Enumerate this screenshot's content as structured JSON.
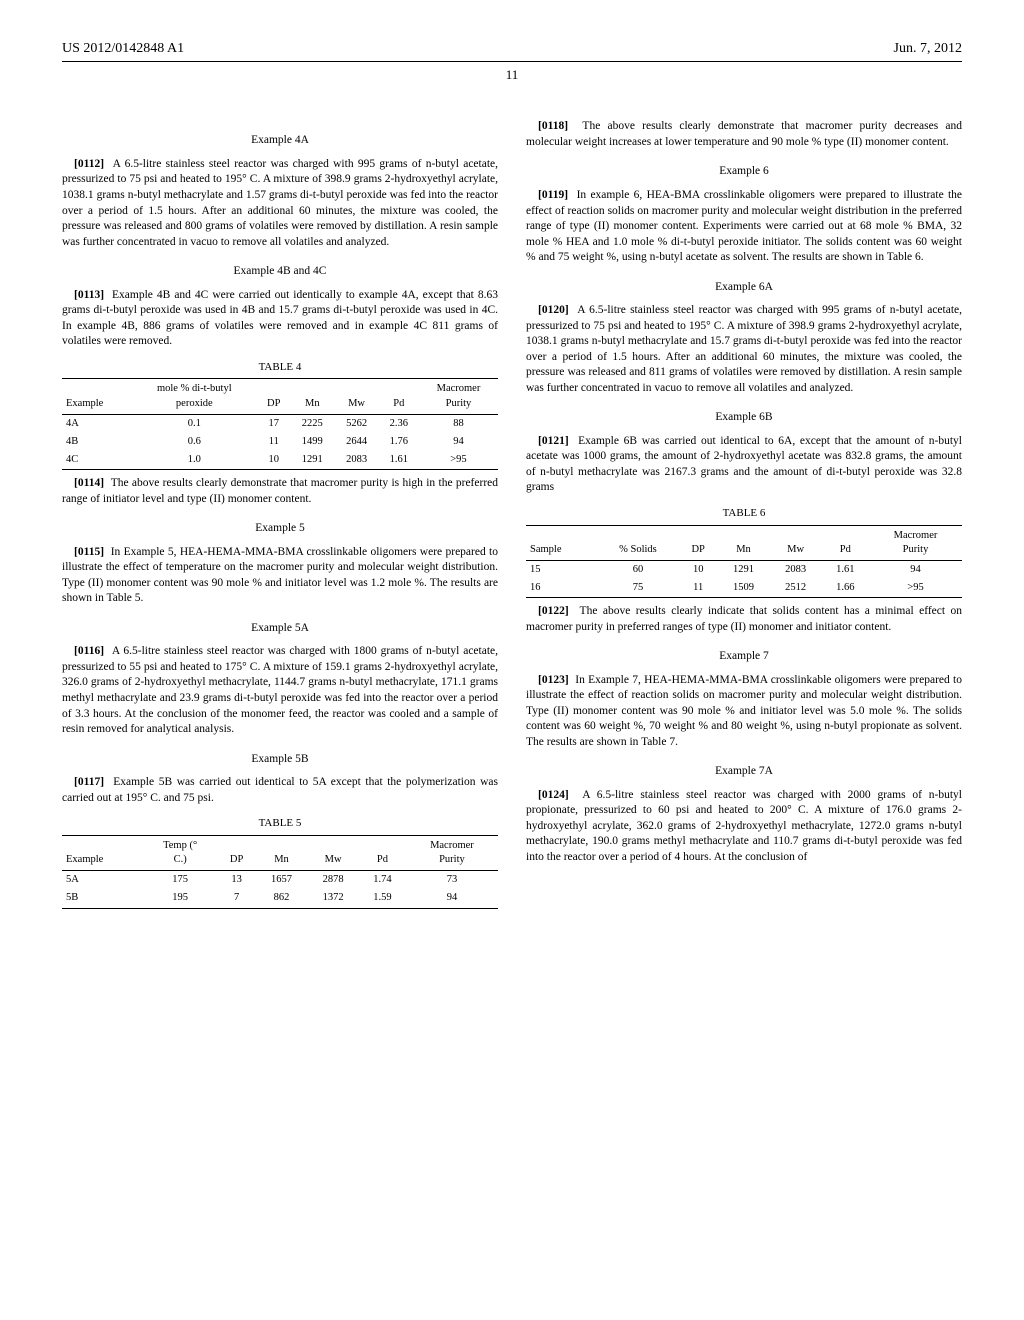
{
  "header": {
    "docnum": "US 2012/0142848 A1",
    "date": "Jun. 7, 2012",
    "pagenum": "11"
  },
  "col_left": {
    "ex4A": {
      "title": "Example 4A",
      "para_num": "[0112]",
      "text": "A 6.5-litre stainless steel reactor was charged with 995 grams of n-butyl acetate, pressurized to 75 psi and heated to 195° C. A mixture of 398.9 grams 2-hydroxyethyl acrylate, 1038.1 grams n-butyl methacrylate and 1.57 grams di-t-butyl peroxide was fed into the reactor over a period of 1.5 hours. After an additional 60 minutes, the mixture was cooled, the pressure was released and 800 grams of volatiles were removed by distillation. A resin sample was further concentrated in vacuo to remove all volatiles and analyzed."
    },
    "ex4BC": {
      "title": "Example 4B and 4C",
      "para_num": "[0113]",
      "text": "Example 4B and 4C were carried out identically to example 4A, except that 8.63 grams di-t-butyl peroxide was used in 4B and 15.7 grams di-t-butyl peroxide was used in 4C. In example 4B, 886 grams of volatiles were removed and in example 4C 811 grams of volatiles were removed."
    },
    "table4": {
      "caption": "TABLE 4",
      "headers": [
        "Example",
        "mole % di-t-butyl peroxide",
        "DP",
        "Mn",
        "Mw",
        "Pd",
        "Macromer Purity"
      ],
      "rows": [
        [
          "4A",
          "0.1",
          "17",
          "2225",
          "5262",
          "2.36",
          "88"
        ],
        [
          "4B",
          "0.6",
          "11",
          "1499",
          "2644",
          "1.76",
          "94"
        ],
        [
          "4C",
          "1.0",
          "10",
          "1291",
          "2083",
          "1.61",
          ">95"
        ]
      ]
    },
    "para114": {
      "para_num": "[0114]",
      "text": "The above results clearly demonstrate that macromer purity is high in the preferred range of initiator level and type (II) monomer content."
    },
    "ex5": {
      "title": "Example 5",
      "para_num": "[0115]",
      "text": "In Example 5, HEA-HEMA-MMA-BMA crosslinkable oligomers were prepared to illustrate the effect of temperature on the macromer purity and molecular weight distribution. Type (II) monomer content was 90 mole % and initiator level was 1.2 mole %. The results are shown in Table 5."
    },
    "ex5A": {
      "title": "Example 5A",
      "para_num": "[0116]",
      "text": "A 6.5-litre stainless steel reactor was charged with 1800 grams of n-butyl acetate, pressurized to 55 psi and heated to 175° C. A mixture of 159.1 grams 2-hydroxyethyl acrylate, 326.0 grams of 2-hydroxyethyl methacrylate, 1144.7 grams n-butyl methacrylate, 171.1 grams methyl methacrylate and 23.9 grams di-t-butyl peroxide was fed into the reactor over a period of 3.3 hours. At the conclusion of the monomer feed, the reactor was cooled and a sample of resin removed for analytical analysis."
    },
    "ex5B": {
      "title": "Example 5B",
      "para_num": "[0117]",
      "text": "Example 5B was carried out identical to 5A except that the polymerization was carried out at 195° C. and 75 psi."
    },
    "table5": {
      "caption": "TABLE 5",
      "headers": [
        "Example",
        "Temp (° C.)",
        "DP",
        "Mn",
        "Mw",
        "Pd",
        "Macromer Purity"
      ],
      "rows": [
        [
          "5A",
          "175",
          "13",
          "1657",
          "2878",
          "1.74",
          "73"
        ],
        [
          "5B",
          "195",
          "7",
          "862",
          "1372",
          "1.59",
          "94"
        ]
      ]
    }
  },
  "col_right": {
    "para118": {
      "para_num": "[0118]",
      "text": "The above results clearly demonstrate that macromer purity decreases and molecular weight increases at lower temperature and 90 mole % type (II) monomer content."
    },
    "ex6": {
      "title": "Example 6",
      "para_num": "[0119]",
      "text": "In example 6, HEA-BMA crosslinkable oligomers were prepared to illustrate the effect of reaction solids on macromer purity and molecular weight distribution in the preferred range of type (II) monomer content. Experiments were carried out at 68 mole % BMA, 32 mole % HEA and 1.0 mole % di-t-butyl peroxide initiator. The solids content was 60 weight % and 75 weight %, using n-butyl acetate as solvent. The results are shown in Table 6."
    },
    "ex6A": {
      "title": "Example 6A",
      "para_num": "[0120]",
      "text": "A 6.5-litre stainless steel reactor was charged with 995 grams of n-butyl acetate, pressurized to 75 psi and heated to 195° C. A mixture of 398.9 grams 2-hydroxyethyl acrylate, 1038.1 grams n-butyl methacrylate and 15.7 grams di-t-butyl peroxide was fed into the reactor over a period of 1.5 hours. After an additional 60 minutes, the mixture was cooled, the pressure was released and 811 grams of volatiles were removed by distillation. A resin sample was further concentrated in vacuo to remove all volatiles and analyzed."
    },
    "ex6B": {
      "title": "Example 6B",
      "para_num": "[0121]",
      "text": "Example 6B was carried out identical to 6A, except that the amount of n-butyl acetate was 1000 grams, the amount of 2-hydroxyethyl acetate was 832.8 grams, the amount of n-butyl methacrylate was 2167.3 grams and the amount of di-t-butyl peroxide was 32.8 grams"
    },
    "table6": {
      "caption": "TABLE 6",
      "headers": [
        "Sample",
        "% Solids",
        "DP",
        "Mn",
        "Mw",
        "Pd",
        "Macromer Purity"
      ],
      "rows": [
        [
          "15",
          "60",
          "10",
          "1291",
          "2083",
          "1.61",
          "94"
        ],
        [
          "16",
          "75",
          "11",
          "1509",
          "2512",
          "1.66",
          ">95"
        ]
      ]
    },
    "para122": {
      "para_num": "[0122]",
      "text": "The above results clearly indicate that solids content has a minimal effect on macromer purity in preferred ranges of type (II) monomer and initiator content."
    },
    "ex7": {
      "title": "Example 7",
      "para_num": "[0123]",
      "text": "In Example 7, HEA-HEMA-MMA-BMA crosslinkable oligomers were prepared to illustrate the effect of reaction solids on macromer purity and molecular weight distribution. Type (II) monomer content was 90 mole % and initiator level was 5.0 mole %. The solids content was 60 weight %, 70 weight % and 80 weight %, using n-butyl propionate as solvent. The results are shown in Table 7."
    },
    "ex7A": {
      "title": "Example 7A",
      "para_num": "[0124]",
      "text": "A 6.5-litre stainless steel reactor was charged with 2000 grams of n-butyl propionate, pressurized to 60 psi and heated to 200° C. A mixture of 176.0 grams 2-hydroxyethyl acrylate, 362.0 grams of 2-hydroxyethyl methacrylate, 1272.0 grams n-butyl methacrylate, 190.0 grams methyl methacrylate and 110.7 grams di-t-butyl peroxide was fed into the reactor over a period of 4 hours. At the conclusion of"
    }
  }
}
